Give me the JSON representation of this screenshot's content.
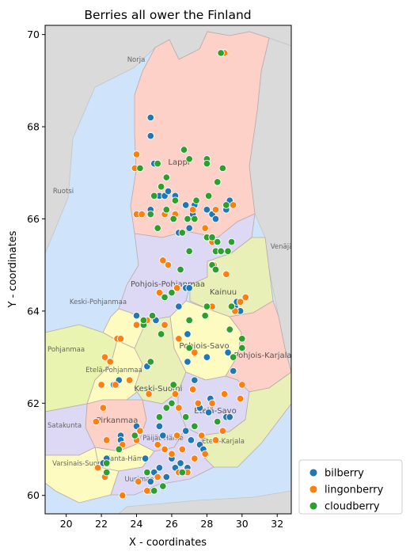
{
  "chart_data": {
    "type": "scatter",
    "title": "Berries all ower the Finland",
    "xlabel": "X - coordinates",
    "ylabel": "Y - coordinates",
    "xlim": [
      18.8,
      32.8
    ],
    "ylim": [
      59.6,
      70.2
    ],
    "xticks": [
      20,
      22,
      24,
      26,
      28,
      30,
      32
    ],
    "yticks": [
      60,
      62,
      64,
      66,
      68,
      70
    ],
    "grid": false,
    "legend_position": "outside-lower-right",
    "background": "map of Finland regions",
    "map_labels": {
      "norja": "Norja",
      "ruotsi": "Ruotsi",
      "venaja": "Venäjä",
      "lappi": "Lappi",
      "pohjois_pohjanmaa": "Pohjois-Pohjanmaa",
      "kainuu": "Kainuu",
      "keski_pohjanmaa": "Keski-Pohjanmaa",
      "pohjanmaa": "Pohjanmaa",
      "etela_pohjanmaa": "Etelä-Pohjanmaa",
      "pohjois_savo": "Pohjois-Savo",
      "pohjois_karjala": "Pohjois-Karjala",
      "keski_suomi": "Keski-Suomi",
      "etela_savo": "Etelä-Savo",
      "pirkanmaa": "Pirkanmaa",
      "satakunta": "Satakunta",
      "kanta_hame": "Kanta-Häme",
      "paijat_hame": "Päijät-Häme",
      "etela_karjala": "Etelä-Karjala",
      "varsinais_suomi": "Varsinais-Suomi",
      "uusimaa": "Uusimaa"
    },
    "series": [
      {
        "name": "bilberry",
        "color": "#1f77b4",
        "points": [
          [
            24.8,
            68.2
          ],
          [
            24.8,
            67.8
          ],
          [
            25.0,
            67.2
          ],
          [
            24.8,
            66.2
          ],
          [
            25.3,
            66.5
          ],
          [
            25.6,
            66.5
          ],
          [
            26.2,
            66.5
          ],
          [
            26.8,
            66.3
          ],
          [
            27.3,
            66.3
          ],
          [
            28.0,
            66.2
          ],
          [
            28.3,
            66.1
          ],
          [
            28.5,
            66.0
          ],
          [
            29.1,
            66.2
          ],
          [
            29.3,
            66.4
          ],
          [
            27.2,
            66.1
          ],
          [
            25.8,
            66.6
          ],
          [
            27.0,
            65.8
          ],
          [
            26.4,
            65.7
          ],
          [
            26.8,
            64.5
          ],
          [
            27.0,
            64.5
          ],
          [
            26.4,
            64.1
          ],
          [
            25.1,
            63.8
          ],
          [
            24.0,
            63.9
          ],
          [
            26.9,
            63.5
          ],
          [
            26.9,
            62.9
          ],
          [
            28.0,
            63.0
          ],
          [
            29.6,
            64.1
          ],
          [
            29.7,
            64.2
          ],
          [
            29.9,
            64.0
          ],
          [
            29.5,
            62.7
          ],
          [
            29.2,
            63.1
          ],
          [
            23.0,
            62.5
          ],
          [
            22.7,
            62.4
          ],
          [
            24.6,
            62.8
          ],
          [
            27.3,
            62.5
          ],
          [
            27.6,
            61.9
          ],
          [
            28.1,
            61.8
          ],
          [
            28.2,
            62.1
          ],
          [
            29.1,
            61.7
          ],
          [
            29.3,
            61.7
          ],
          [
            23.1,
            61.3
          ],
          [
            23.1,
            61.2
          ],
          [
            24.0,
            61.5
          ],
          [
            25.3,
            61.5
          ],
          [
            25.5,
            61.3
          ],
          [
            26.8,
            61.4
          ],
          [
            27.1,
            61.2
          ],
          [
            27.6,
            61.1
          ],
          [
            27.8,
            61.0
          ],
          [
            22.3,
            60.8
          ],
          [
            22.1,
            60.7
          ],
          [
            24.5,
            60.8
          ],
          [
            24.8,
            60.3
          ],
          [
            24.7,
            60.1
          ],
          [
            25.0,
            60.5
          ],
          [
            25.3,
            60.6
          ],
          [
            26.0,
            60.8
          ],
          [
            26.2,
            60.6
          ],
          [
            26.9,
            60.6
          ],
          [
            26.5,
            60.7
          ],
          [
            25.7,
            60.4
          ]
        ]
      },
      {
        "name": "lingonberry",
        "color": "#ff7f0e",
        "points": [
          [
            29.0,
            69.6
          ],
          [
            24.0,
            67.4
          ],
          [
            23.9,
            67.1
          ],
          [
            24.0,
            66.1
          ],
          [
            24.3,
            66.1
          ],
          [
            25.6,
            66.1
          ],
          [
            26.2,
            66.1
          ],
          [
            27.2,
            66.2
          ],
          [
            27.9,
            65.8
          ],
          [
            28.5,
            66.2
          ],
          [
            29.5,
            66.3
          ],
          [
            28.3,
            65.5
          ],
          [
            28.6,
            65.3
          ],
          [
            28.4,
            65.0
          ],
          [
            25.5,
            65.1
          ],
          [
            25.8,
            65.0
          ],
          [
            26.3,
            64.5
          ],
          [
            25.3,
            64.4
          ],
          [
            29.1,
            64.8
          ],
          [
            29.6,
            64.0
          ],
          [
            29.9,
            64.2
          ],
          [
            30.2,
            64.3
          ],
          [
            28.3,
            64.1
          ],
          [
            24.0,
            63.7
          ],
          [
            24.6,
            63.8
          ],
          [
            25.6,
            63.7
          ],
          [
            26.4,
            63.4
          ],
          [
            27.3,
            63.1
          ],
          [
            22.2,
            63.0
          ],
          [
            22.9,
            63.4
          ],
          [
            23.1,
            63.4
          ],
          [
            22.0,
            62.4
          ],
          [
            22.5,
            62.9
          ],
          [
            22.8,
            62.4
          ],
          [
            23.6,
            62.5
          ],
          [
            24.7,
            62.2
          ],
          [
            26.2,
            62.2
          ],
          [
            26.4,
            61.9
          ],
          [
            27.2,
            62.3
          ],
          [
            27.5,
            62.0
          ],
          [
            28.3,
            62.0
          ],
          [
            29.0,
            62.2
          ],
          [
            29.9,
            62.1
          ],
          [
            30.0,
            62.4
          ],
          [
            22.1,
            61.9
          ],
          [
            21.7,
            61.6
          ],
          [
            22.3,
            61.2
          ],
          [
            23.2,
            61.1
          ],
          [
            24.2,
            61.4
          ],
          [
            24.0,
            61.2
          ],
          [
            25.2,
            61.1
          ],
          [
            25.6,
            61.0
          ],
          [
            26.3,
            61.3
          ],
          [
            26.6,
            61.0
          ],
          [
            27.7,
            61.3
          ],
          [
            28.5,
            61.2
          ],
          [
            28.9,
            61.4
          ],
          [
            21.8,
            60.6
          ],
          [
            22.2,
            60.4
          ],
          [
            23.2,
            60.0
          ],
          [
            24.1,
            60.3
          ],
          [
            24.6,
            60.1
          ],
          [
            25.2,
            60.4
          ],
          [
            26.0,
            60.9
          ],
          [
            26.4,
            60.5
          ],
          [
            26.9,
            60.5
          ],
          [
            27.3,
            60.8
          ],
          [
            27.9,
            60.9
          ]
        ]
      },
      {
        "name": "cloudberry",
        "color": "#2ca02c",
        "points": [
          [
            28.8,
            69.6
          ],
          [
            26.7,
            67.5
          ],
          [
            27.0,
            67.3
          ],
          [
            25.2,
            67.2
          ],
          [
            24.2,
            67.1
          ],
          [
            28.0,
            67.3
          ],
          [
            28.0,
            67.2
          ],
          [
            28.9,
            67.1
          ],
          [
            28.6,
            66.8
          ],
          [
            25.7,
            66.9
          ],
          [
            25.4,
            66.7
          ],
          [
            25.0,
            66.5
          ],
          [
            26.2,
            66.4
          ],
          [
            27.4,
            66.4
          ],
          [
            28.1,
            66.5
          ],
          [
            29.1,
            66.3
          ],
          [
            24.8,
            66.1
          ],
          [
            25.7,
            66.2
          ],
          [
            26.1,
            66.0
          ],
          [
            26.9,
            66.0
          ],
          [
            27.3,
            66.0
          ],
          [
            25.2,
            65.8
          ],
          [
            26.6,
            65.7
          ],
          [
            28.0,
            65.6
          ],
          [
            28.3,
            65.6
          ],
          [
            28.6,
            65.5
          ],
          [
            28.5,
            65.3
          ],
          [
            28.8,
            65.3
          ],
          [
            29.2,
            65.3
          ],
          [
            29.4,
            65.5
          ],
          [
            27.0,
            65.3
          ],
          [
            26.5,
            64.9
          ],
          [
            28.3,
            65.0
          ],
          [
            28.5,
            64.9
          ],
          [
            25.6,
            64.3
          ],
          [
            26.0,
            64.4
          ],
          [
            28.0,
            64.1
          ],
          [
            29.4,
            64.1
          ],
          [
            24.4,
            63.7
          ],
          [
            24.4,
            63.8
          ],
          [
            24.9,
            63.9
          ],
          [
            25.4,
            63.5
          ],
          [
            27.0,
            63.8
          ],
          [
            27.9,
            63.9
          ],
          [
            29.3,
            63.6
          ],
          [
            30.0,
            63.2
          ],
          [
            30.0,
            63.4
          ],
          [
            29.5,
            63.0
          ],
          [
            27.0,
            63.2
          ],
          [
            24.8,
            62.9
          ],
          [
            26.1,
            62.4
          ],
          [
            25.7,
            61.9
          ],
          [
            26.0,
            62.0
          ],
          [
            23.9,
            61.3
          ],
          [
            25.3,
            61.7
          ],
          [
            26.8,
            61.7
          ],
          [
            27.3,
            61.5
          ],
          [
            28.6,
            61.6
          ],
          [
            23.0,
            61.0
          ],
          [
            22.3,
            60.7
          ],
          [
            22.3,
            60.5
          ],
          [
            24.6,
            60.5
          ],
          [
            25.5,
            60.2
          ],
          [
            25.0,
            60.1
          ],
          [
            26.6,
            60.5
          ]
        ]
      }
    ]
  }
}
